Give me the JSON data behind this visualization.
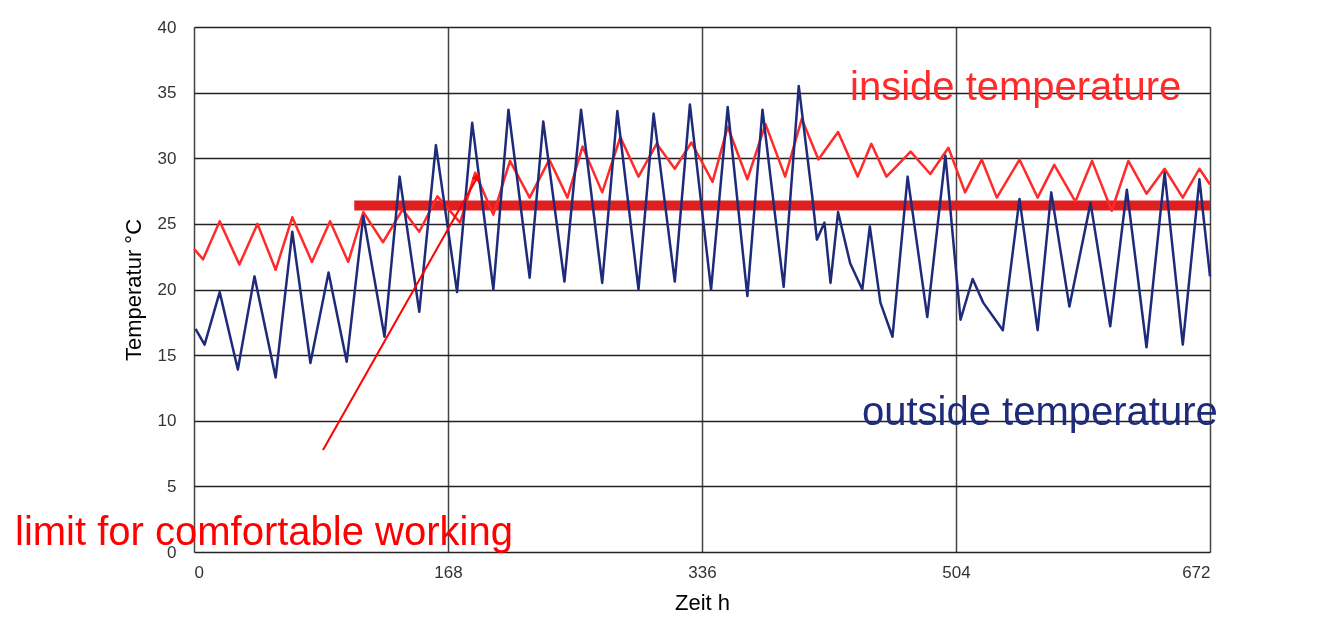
{
  "chart_data": {
    "type": "line",
    "xlabel": "Zeit h",
    "ylabel": "Temperatur °C",
    "xlim": [
      0,
      672
    ],
    "xticks": [
      0,
      168,
      336,
      504,
      672
    ],
    "ylim": [
      0,
      40
    ],
    "yticks": [
      0,
      5,
      10,
      15,
      20,
      25,
      30,
      35,
      40
    ],
    "grid": true,
    "annotations": [
      "limit for comfortable working"
    ],
    "series": [
      {
        "name": "inside temperature",
        "color": "#ff2a2a",
        "x": [
          0,
          6,
          17,
          30,
          42,
          54,
          65,
          78,
          90,
          102,
          112,
          125,
          138,
          149,
          161,
          176,
          186,
          198,
          209,
          222,
          235,
          247,
          257,
          270,
          282,
          294,
          306,
          318,
          329,
          343,
          353,
          366,
          378,
          391,
          402,
          413,
          426,
          439,
          448,
          458,
          474,
          487,
          499,
          510,
          521,
          531,
          546,
          558,
          569,
          583,
          594,
          607,
          618,
          630,
          642,
          654,
          665,
          672
        ],
        "values": [
          23.1,
          22.3,
          25.2,
          21.9,
          25,
          21.5,
          25.5,
          22.1,
          25.2,
          22.1,
          25.9,
          23.6,
          26.1,
          24.4,
          27.1,
          25.1,
          28.9,
          25.7,
          29.8,
          27,
          29.9,
          27,
          30.9,
          27.4,
          31.6,
          28.6,
          31.1,
          29.2,
          31.2,
          28.2,
          32.4,
          28.4,
          32.6,
          28.6,
          33,
          29.9,
          32,
          28.6,
          31.1,
          28.6,
          30.5,
          28.8,
          30.8,
          27.4,
          29.9,
          27,
          29.9,
          27,
          29.5,
          26.7,
          29.8,
          26,
          29.8,
          27.3,
          29.2,
          27,
          29.2,
          28
        ]
      },
      {
        "name": "outside temperature",
        "color": "#1e2b7a",
        "x": [
          1,
          7,
          17,
          29,
          40,
          54,
          65,
          77,
          89,
          101,
          112,
          126,
          136,
          149,
          160,
          174,
          184,
          198,
          208,
          222,
          231,
          245,
          256,
          270,
          280,
          294,
          304,
          318,
          328,
          342,
          353,
          366,
          376,
          390,
          400,
          409,
          412,
          417,
          421,
          426,
          434,
          442,
          447,
          454,
          462,
          472,
          485,
          497,
          507,
          515,
          522,
          535,
          546,
          558,
          567,
          579,
          593,
          606,
          617,
          630,
          642,
          654,
          665,
          672
        ],
        "values": [
          17,
          15.8,
          19.8,
          13.9,
          21,
          13.3,
          24.4,
          14.4,
          21.3,
          14.5,
          25.6,
          16.4,
          28.6,
          18.3,
          31,
          19.8,
          32.7,
          20,
          33.7,
          20.9,
          32.8,
          20.6,
          33.7,
          20.5,
          33.6,
          20,
          33.4,
          20.6,
          34.1,
          20,
          33.9,
          19.5,
          33.7,
          20.2,
          35.5,
          27,
          23.8,
          25.1,
          20.5,
          25.9,
          22,
          20,
          24.8,
          19,
          16.4,
          28.6,
          17.9,
          30.2,
          17.7,
          20.8,
          19,
          16.9,
          26.9,
          16.9,
          27.4,
          18.7,
          26.6,
          17.2,
          27.6,
          15.6,
          28.9,
          15.8,
          28.4,
          21
        ]
      },
      {
        "color": "#e02020",
        "x": [
          106,
          672
        ],
        "values": [
          26.4,
          26.4
        ]
      }
    ]
  }
}
